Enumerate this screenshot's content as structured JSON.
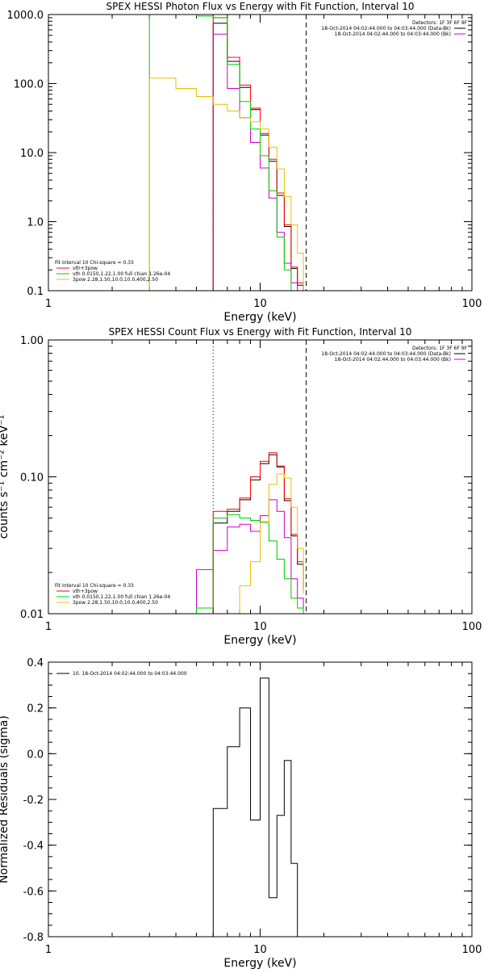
{
  "panels": [
    {
      "id": "photon",
      "title": "SPEX HESSI Photon Flux vs Energy with Fit Function, Interval 10",
      "xlabel": "Energy (keV)",
      "ylabel": "",
      "xscale": "log",
      "yscale": "log",
      "xlim": [
        1,
        100
      ],
      "ylim": [
        0.1,
        1000
      ],
      "xticks": [
        {
          "v": 1,
          "label": "1"
        },
        {
          "v": 10,
          "label": "10"
        },
        {
          "v": 100,
          "label": "100"
        }
      ],
      "yticks": [
        {
          "v": 0.1,
          "label": "0.1"
        },
        {
          "v": 1,
          "label": "1.0"
        },
        {
          "v": 10,
          "label": "10.0"
        },
        {
          "v": 100,
          "label": "100.0"
        },
        {
          "v": 1000,
          "label": "1000.0"
        }
      ],
      "vlines": [
        {
          "x": 6.0,
          "style": "dotted"
        },
        {
          "x": 16.5,
          "style": "dashed"
        }
      ],
      "legend_right": [
        {
          "text": "Detectors: 1F 3F 6F 9F",
          "color": ""
        },
        {
          "text": "18-Oct-2014 04:02:44.000 to 04:03:44.000 (Data-Bk)",
          "color": "#000000"
        },
        {
          "text": "18-Oct-2014 04:02:44.000 to 04:03:44.000 (Bk)",
          "color": "#cc00cc"
        }
      ],
      "legend_left": [
        {
          "text": "Fit Interval 10   Chi-square = 0.33",
          "color": ""
        },
        {
          "text": "vth+3pow",
          "color": "#ff0000"
        },
        {
          "text": "vth 0.0150,1.22,1.00  full chian 1.26e-04",
          "color": "#00cc00"
        },
        {
          "text": "3pow 2.28,1.50,10.0,10.0,400,2.50",
          "color": "#e8c000"
        }
      ],
      "series": [
        {
          "color": "#000000",
          "edges": [
            6.0,
            7.0,
            8.0,
            9.0,
            10.0,
            11.0,
            12.0,
            13.0,
            14.0,
            15.0,
            16.0
          ],
          "values": [
            750,
            210,
            88,
            42,
            18,
            7.5,
            2.4,
            0.85,
            0.21,
            0.12
          ]
        },
        {
          "color": "#ff0000",
          "edges": [
            6.0,
            7.0,
            8.0,
            9.0,
            10.0,
            11.0,
            12.0,
            13.0,
            14.0,
            15.0,
            16.0
          ],
          "values": [
            900,
            240,
            95,
            44,
            19,
            8.0,
            2.6,
            0.9,
            0.22,
            0.13
          ]
        },
        {
          "color": "#cc00cc",
          "edges": [
            6.0,
            7.0,
            8.0,
            9.0,
            10.0,
            11.0,
            12.0,
            13.0,
            14.0,
            15.0,
            16.0
          ],
          "values": [
            520,
            85,
            32,
            14,
            6.0,
            2.2,
            0.7,
            0.25,
            0.13,
            0.1
          ]
        },
        {
          "color": "#00cc00",
          "edges": [
            3.0,
            5.0,
            6.0,
            7.0,
            8.0,
            9.0,
            10.0,
            11.0,
            12.0,
            13.0,
            14.0,
            15.0
          ],
          "values": [
            1500,
            950,
            900,
            190,
            55,
            22,
            9.0,
            2.8,
            0.6,
            0.2,
            0.08
          ]
        },
        {
          "color": "#e8c000",
          "edges": [
            3.0,
            4.0,
            5.0,
            6.0,
            7.0,
            8.0,
            9.0,
            10.0,
            11.0,
            12.0,
            13.0,
            14.0,
            15.0,
            16.0
          ],
          "values": [
            120,
            85,
            65,
            50,
            40,
            32,
            28,
            22,
            12,
            5.8,
            2.3,
            0.9,
            0.35,
            0.1
          ]
        }
      ]
    },
    {
      "id": "count",
      "title": "SPEX HESSI Count Flux vs Energy with Fit Function, Interval 10",
      "xlabel": "Energy (keV)",
      "ylabel": "counts s⁻¹ cm⁻² keV⁻¹",
      "xscale": "log",
      "yscale": "log",
      "xlim": [
        1,
        100
      ],
      "ylim": [
        0.01,
        1
      ],
      "xticks": [
        {
          "v": 1,
          "label": "1"
        },
        {
          "v": 10,
          "label": "10"
        },
        {
          "v": 100,
          "label": "100"
        }
      ],
      "yticks": [
        {
          "v": 0.01,
          "label": "0.01"
        },
        {
          "v": 0.1,
          "label": "0.10"
        },
        {
          "v": 1,
          "label": "1.00"
        }
      ],
      "vlines": [
        {
          "x": 6.0,
          "style": "dotted"
        },
        {
          "x": 16.5,
          "style": "dashed"
        }
      ],
      "legend_right": [
        {
          "text": "Detectors: 1F 3F 6F 9F",
          "color": ""
        },
        {
          "text": "18-Oct-2014 04:02:44.000 to 04:03:44.000 (Data-Bk)",
          "color": "#000000"
        },
        {
          "text": "18-Oct-2014 04:02:44.000 to 04:03:44.000 (Bk)",
          "color": "#cc00cc"
        }
      ],
      "legend_left": [
        {
          "text": "Fit Interval 10   Chi-square = 0.33",
          "color": ""
        },
        {
          "text": "vth+3pow",
          "color": "#ff0000"
        },
        {
          "text": "vth 0.0150,1.22,1.00  full chian 1.26e-04",
          "color": "#00cc00"
        },
        {
          "text": "3pow 2.28,1.50,10.0,10.0,400,2.50",
          "color": "#e8c000"
        }
      ],
      "series": [
        {
          "color": "#cc00cc",
          "edges": [
            5.0,
            6.0,
            7.0,
            8.0,
            9.0,
            10.0,
            11.0,
            12.0,
            13.0,
            14.0,
            15.0,
            16.0
          ],
          "values": [
            0.021,
            0.029,
            0.043,
            0.045,
            0.04,
            0.052,
            0.068,
            0.056,
            0.036,
            0.018,
            0.013,
            0.011
          ]
        },
        {
          "color": "#000000",
          "edges": [
            6.0,
            7.0,
            8.0,
            9.0,
            10.0,
            11.0,
            12.0,
            13.0,
            14.0,
            15.0,
            16.0
          ],
          "values": [
            0.046,
            0.056,
            0.068,
            0.095,
            0.125,
            0.145,
            0.118,
            0.067,
            0.037,
            0.023,
            0.015
          ]
        },
        {
          "color": "#ff0000",
          "edges": [
            6.0,
            7.0,
            8.0,
            9.0,
            10.0,
            11.0,
            12.0,
            13.0,
            14.0,
            15.0,
            16.0
          ],
          "values": [
            0.056,
            0.058,
            0.07,
            0.1,
            0.13,
            0.15,
            0.12,
            0.069,
            0.038,
            0.024,
            0.016
          ]
        },
        {
          "color": "#00cc00",
          "edges": [
            5.0,
            6.0,
            7.0,
            8.0,
            9.0,
            10.0,
            11.0,
            12.0,
            13.0,
            14.0,
            15.0,
            16.0
          ],
          "values": [
            0.011,
            0.05,
            0.053,
            0.05,
            0.048,
            0.047,
            0.034,
            0.025,
            0.018,
            0.013,
            0.011,
            0.01
          ]
        },
        {
          "color": "#e8c000",
          "edges": [
            6.0,
            7.0,
            8.0,
            9.0,
            10.0,
            11.0,
            12.0,
            13.0,
            14.0,
            15.0,
            16.0
          ],
          "values": [
            0.006,
            0.01,
            0.016,
            0.024,
            0.046,
            0.088,
            0.105,
            0.098,
            0.06,
            0.03,
            0.014
          ]
        }
      ]
    },
    {
      "id": "residuals",
      "title": "",
      "xlabel": "Energy (keV)",
      "ylabel": "Normalized Residuals (sigma)",
      "xscale": "log",
      "yscale": "linear",
      "xlim": [
        1,
        100
      ],
      "ylim": [
        -0.8,
        0.4
      ],
      "xticks": [
        {
          "v": 1,
          "label": "1"
        },
        {
          "v": 10,
          "label": "10"
        },
        {
          "v": 100,
          "label": "100"
        }
      ],
      "yticks": [
        {
          "v": -0.8,
          "label": "-0.8"
        },
        {
          "v": -0.6,
          "label": "-0.6"
        },
        {
          "v": -0.4,
          "label": "-0.4"
        },
        {
          "v": -0.2,
          "label": "-0.2"
        },
        {
          "v": 0.0,
          "label": "0.0"
        },
        {
          "v": 0.2,
          "label": "0.2"
        },
        {
          "v": 0.4,
          "label": "0.4"
        }
      ],
      "vlines": [],
      "legend_right": [],
      "legend_left": [
        {
          "text": "10. 18-Oct-2014 04:02:44.000 to 04:03:44.000",
          "color": "#000000"
        }
      ],
      "series": [
        {
          "color": "#000000",
          "edges": [
            6.0,
            7.0,
            8.0,
            9.0,
            10.0,
            11.0,
            12.0,
            13.0,
            14.0,
            15.0,
            16.5
          ],
          "values": [
            -0.24,
            0.03,
            0.2,
            -0.29,
            0.33,
            -0.63,
            -0.27,
            -0.03,
            -0.48,
            -0.8
          ]
        }
      ]
    }
  ]
}
